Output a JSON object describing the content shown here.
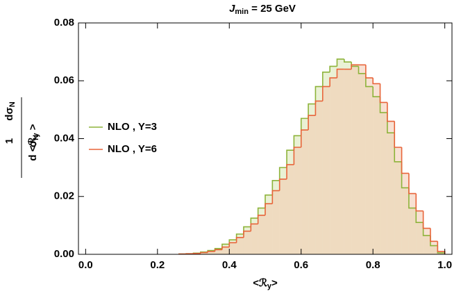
{
  "chart_data": {
    "type": "histogram",
    "title": [
      "J",
      "min",
      " = 25 GeV"
    ],
    "xlabel": [
      "<ℛ",
      "y",
      ">"
    ],
    "ylabel": {
      "left_num": [
        "1"
      ],
      "left_den": [
        "σ",
        "N"
      ],
      "right_num": [
        "dσ",
        "N"
      ],
      "right_den": [
        "d <ℛ",
        "y",
        " >"
      ]
    },
    "bins": [
      0.26,
      0.28,
      0.3,
      0.32,
      0.34,
      0.36,
      0.38,
      0.4,
      0.42,
      0.44,
      0.46,
      0.48,
      0.5,
      0.52,
      0.54,
      0.56,
      0.58,
      0.6,
      0.62,
      0.64,
      0.66,
      0.68,
      0.7,
      0.72,
      0.74,
      0.76,
      0.78,
      0.8,
      0.82,
      0.84,
      0.86,
      0.88,
      0.9,
      0.92,
      0.94,
      0.96,
      0.98,
      1.0
    ],
    "series": [
      {
        "name": "NLO , Y=3",
        "color": "#8db33a",
        "fill": "#d9e5b3",
        "values": [
          0.0001,
          0.0002,
          0.0004,
          0.0008,
          0.0013,
          0.002,
          0.0035,
          0.005,
          0.007,
          0.0095,
          0.0125,
          0.016,
          0.0205,
          0.0255,
          0.03,
          0.036,
          0.041,
          0.047,
          0.052,
          0.058,
          0.063,
          0.065,
          0.0675,
          0.0665,
          0.065,
          0.0625,
          0.058,
          0.0545,
          0.049,
          0.042,
          0.032,
          0.023,
          0.016,
          0.011,
          0.0065,
          0.003,
          0.0005
        ]
      },
      {
        "name": "NLO , Y=6",
        "color": "#e8643a",
        "fill": "#f2c9ae",
        "values": [
          0.0001,
          0.0002,
          0.0003,
          0.0006,
          0.001,
          0.0016,
          0.0025,
          0.004,
          0.0058,
          0.008,
          0.0105,
          0.0135,
          0.0175,
          0.022,
          0.026,
          0.031,
          0.037,
          0.043,
          0.048,
          0.053,
          0.058,
          0.061,
          0.064,
          0.064,
          0.0655,
          0.0655,
          0.061,
          0.059,
          0.0525,
          0.046,
          0.037,
          0.028,
          0.021,
          0.015,
          0.009,
          0.0045,
          0.001
        ]
      }
    ],
    "xlim": [
      -0.02,
      1.02
    ],
    "ylim": [
      0,
      0.08
    ],
    "xticks": [
      {
        "value": 0,
        "label": "0.0"
      },
      0.2,
      0.4,
      0.6,
      0.8,
      {
        "value": 1,
        "label": "1.0"
      }
    ],
    "yticks": [
      {
        "value": 0,
        "label": "0.00"
      },
      {
        "value": 0.02,
        "label": "0.02"
      },
      {
        "value": 0.04,
        "label": "0.04"
      },
      {
        "value": 0.06,
        "label": "0.06"
      },
      {
        "value": 0.08,
        "label": "0.08"
      }
    ],
    "legend": "left"
  }
}
